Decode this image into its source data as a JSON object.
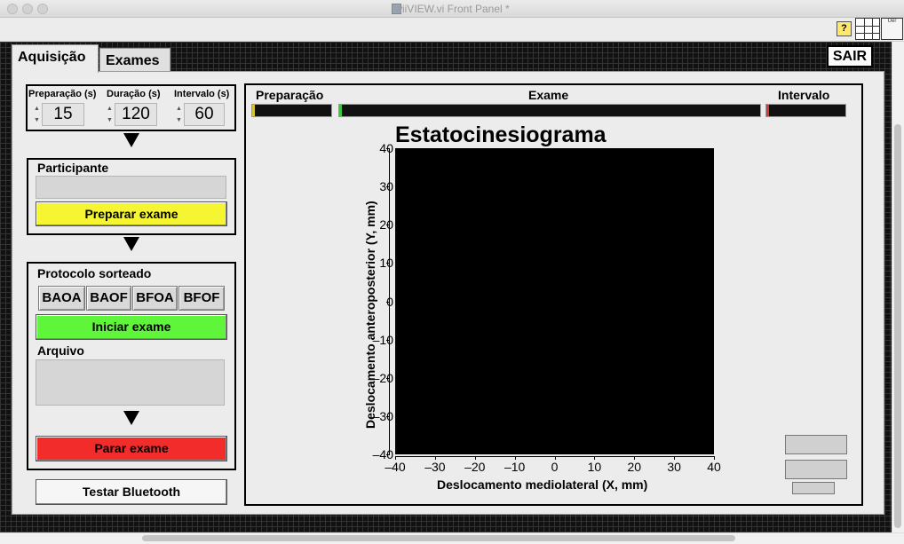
{
  "window": {
    "title": "wiiVIEW.vi Front Panel *"
  },
  "toolbar": {
    "help_icon_glyph": "?",
    "vi_icon_label": "Uer"
  },
  "tabs": [
    {
      "label": "Aquisição",
      "selected": true
    },
    {
      "label": "Exames",
      "selected": false
    }
  ],
  "sair_label": "SAIR",
  "timing": {
    "preparacao": {
      "label": "Preparação (s)",
      "value": "15"
    },
    "duracao": {
      "label": "Duração (s)",
      "value": "120"
    },
    "intervalo": {
      "label": "Intervalo (s)",
      "value": "60"
    }
  },
  "participante": {
    "label": "Participante",
    "value": ""
  },
  "preparar_label": "Preparar exame",
  "protocolo": {
    "label": "Protocolo sorteado",
    "options": [
      "BAOA",
      "BAOF",
      "BFOA",
      "BFOF"
    ]
  },
  "iniciar_label": "Iniciar exame",
  "arquivo": {
    "label": "Arquivo",
    "value": ""
  },
  "parar_label": "Parar exame",
  "testar_label": "Testar Bluetooth",
  "progress": {
    "preparacao": {
      "label": "Preparação",
      "fill_color": "#d8c23a"
    },
    "exame": {
      "label": "Exame",
      "fill_color": "#3ec43e"
    },
    "intervalo": {
      "label": "Intervalo",
      "fill_color": "#d23a3a"
    }
  },
  "colors": {
    "preparar": "#f5f532",
    "iniciar": "#5ef53a",
    "parar": "#f22b2b",
    "plot_background": "#000000"
  },
  "chart_data": {
    "type": "scatter",
    "title": "Estatocinesiograma",
    "xlabel": "Deslocamento mediolateral (X, mm)",
    "ylabel": "Deslocamento anteroposterior (Y, mm)",
    "xlim": [
      -40,
      40
    ],
    "ylim": [
      -40,
      40
    ],
    "x_ticks": [
      "–40",
      "–30",
      "–20",
      "–10",
      "0",
      "10",
      "20",
      "30",
      "40"
    ],
    "y_ticks": [
      "40",
      "30",
      "20",
      "10",
      "0",
      "–10",
      "–20",
      "–30",
      "–40"
    ],
    "series": [],
    "grid": false
  }
}
